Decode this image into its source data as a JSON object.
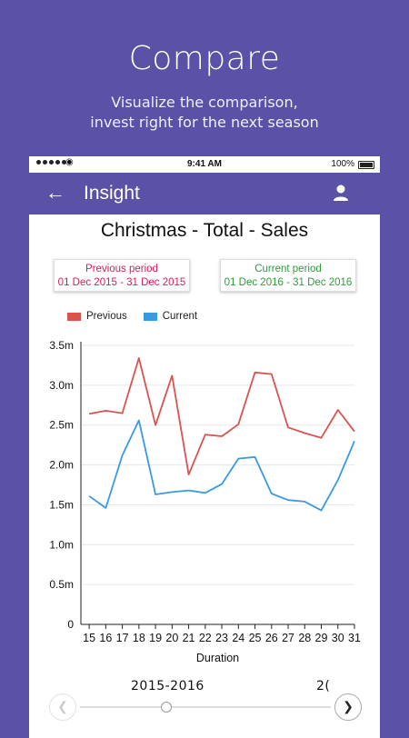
{
  "hero": {
    "title": "Compare",
    "subtitle_line1": "Visualize the comparison,",
    "subtitle_line2": "invest right for the next season"
  },
  "status_bar": {
    "time": "9:41 AM",
    "battery": "100%"
  },
  "app_bar": {
    "title": "Insight",
    "back_icon": "arrow-left-icon",
    "profile_icon": "user-icon"
  },
  "colors": {
    "brand": "#5a52a6",
    "previous": "#d9534f",
    "current": "#3a9ae0",
    "previous_text": "#d81b60",
    "current_text": "#2e9b3a"
  },
  "periods": {
    "previous": {
      "label": "Previous period",
      "range": "01 Dec 2015 - 31 Dec 2015"
    },
    "current": {
      "label": "Current period",
      "range": "01 Dec 2016 - 31 Dec 2016"
    }
  },
  "chart_data": {
    "type": "line",
    "title": "Christmas - Total - Sales",
    "xlabel": "Duration",
    "ylabel": "",
    "x": [
      15,
      16,
      17,
      18,
      19,
      20,
      21,
      22,
      23,
      24,
      25,
      26,
      27,
      28,
      29,
      30,
      31
    ],
    "y_ticks": [
      "0",
      "0.5m",
      "1.0m",
      "1.5m",
      "2.0m",
      "2.5m",
      "3.0m",
      "3.5m"
    ],
    "ylim": [
      0,
      3.5
    ],
    "grid": "horizontal",
    "legend_position": "top-left",
    "series": [
      {
        "name": "Previous",
        "values": [
          2.64,
          2.68,
          2.65,
          3.34,
          2.5,
          3.12,
          1.88,
          2.38,
          2.36,
          2.51,
          3.16,
          3.14,
          2.47,
          2.4,
          2.34,
          2.69,
          2.42
        ]
      },
      {
        "name": "Current",
        "values": [
          1.61,
          1.46,
          2.12,
          2.56,
          1.63,
          1.66,
          1.68,
          1.65,
          1.76,
          2.08,
          2.1,
          1.64,
          1.56,
          1.54,
          1.43,
          1.81,
          2.3
        ]
      }
    ]
  },
  "season_selector": {
    "current": "2015-2016",
    "next_partial": "2("
  }
}
